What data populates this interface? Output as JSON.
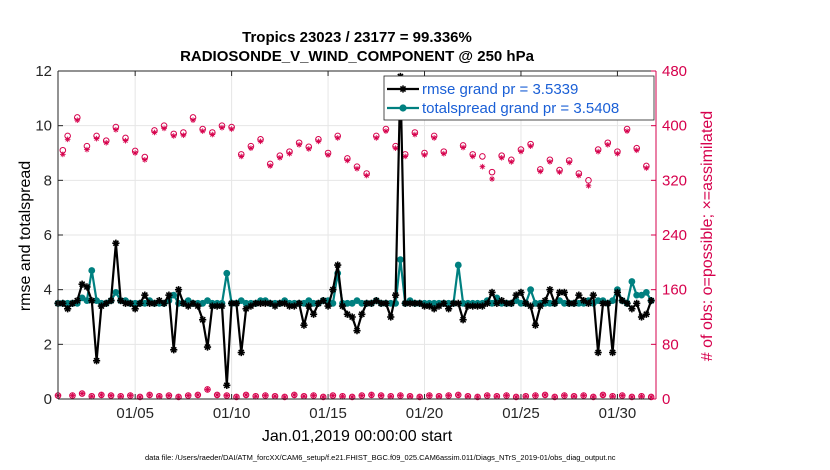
{
  "chart_data": {
    "type": "line",
    "title": "Tropics 23023 / 23177 = 99.336%",
    "subtitle": "RADIOSONDE_V_WIND_COMPONENT @ 250 hPa",
    "xlabel": "Jan.01,2019 00:00:00 start",
    "ylabel": "rmse and totalspread",
    "y2label": "# of obs: o=possible; ×=assimilated",
    "footnote": "data file: /Users/raeder/DAI/ATM_forcXX/CAM6_setup/f.e21.FHIST_BGC.f09_025.CAM6assim.011/Diags_NTrS_2019-01/obs_diag_output.nc",
    "xlim": [
      1,
      32
    ],
    "ylim": [
      0,
      12
    ],
    "y2lim": [
      0,
      480
    ],
    "x_ticks": [
      5,
      10,
      15,
      20,
      25,
      30
    ],
    "x_tick_labels": [
      "01/05",
      "01/10",
      "01/15",
      "01/20",
      "01/25",
      "01/30"
    ],
    "y_ticks": [
      0,
      2,
      4,
      6,
      8,
      10,
      12
    ],
    "y_tick_labels": [
      "0",
      "2",
      "4",
      "6",
      "8",
      "10",
      "12"
    ],
    "y2_ticks": [
      0,
      80,
      160,
      240,
      320,
      400,
      480
    ],
    "y2_tick_labels": [
      "0",
      "80",
      "160",
      "240",
      "320",
      "400",
      "480"
    ],
    "legend": {
      "position": "top-right",
      "entries": [
        "rmse grand pr = 3.5339",
        "totalspread grand pr = 3.5408"
      ]
    },
    "colors": {
      "rmse": "#000000",
      "spread": "#008080",
      "obs": "#d6004c",
      "legend_text": "#1a5fd6"
    },
    "x": [
      1.0,
      1.25,
      1.5,
      1.75,
      2.0,
      2.25,
      2.5,
      2.75,
      3.0,
      3.25,
      3.5,
      3.75,
      4.0,
      4.25,
      4.5,
      4.75,
      5.0,
      5.25,
      5.5,
      5.75,
      6.0,
      6.25,
      6.5,
      6.75,
      7.0,
      7.25,
      7.5,
      7.75,
      8.0,
      8.25,
      8.5,
      8.75,
      9.0,
      9.25,
      9.5,
      9.75,
      10.0,
      10.25,
      10.5,
      10.75,
      11.0,
      11.25,
      11.5,
      11.75,
      12.0,
      12.25,
      12.5,
      12.75,
      13.0,
      13.25,
      13.5,
      13.75,
      14.0,
      14.25,
      14.5,
      14.75,
      15.0,
      15.25,
      15.5,
      15.75,
      16.0,
      16.25,
      16.5,
      16.75,
      17.0,
      17.25,
      17.5,
      17.75,
      18.0,
      18.25,
      18.5,
      18.75,
      19.0,
      19.25,
      19.5,
      19.75,
      20.0,
      20.25,
      20.5,
      20.75,
      21.0,
      21.25,
      21.5,
      21.75,
      22.0,
      22.25,
      22.5,
      22.75,
      23.0,
      23.25,
      23.5,
      23.75,
      24.0,
      24.25,
      24.5,
      24.75,
      25.0,
      25.25,
      25.5,
      25.75,
      26.0,
      26.25,
      26.5,
      26.75,
      27.0,
      27.25,
      27.5,
      27.75,
      28.0,
      28.25,
      28.5,
      28.75,
      29.0,
      29.25,
      29.5,
      29.75,
      30.0,
      30.25,
      30.5,
      30.75,
      31.0,
      31.25,
      31.5,
      31.75
    ],
    "series": [
      {
        "name": "rmse",
        "marker": "asterisk",
        "values": [
          3.5,
          3.5,
          3.3,
          3.5,
          3.6,
          4.2,
          4.1,
          3.6,
          1.4,
          3.4,
          3.5,
          3.6,
          5.7,
          3.6,
          3.5,
          3.5,
          3.3,
          3.5,
          3.8,
          3.5,
          3.5,
          3.6,
          3.5,
          3.8,
          1.8,
          4.0,
          3.5,
          3.4,
          3.5,
          3.4,
          2.9,
          1.9,
          3.4,
          3.4,
          3.4,
          0.5,
          3.5,
          3.5,
          1.7,
          3.3,
          3.4,
          3.5,
          3.5,
          3.5,
          3.5,
          3.4,
          3.5,
          3.5,
          3.4,
          3.4,
          3.5,
          2.7,
          3.4,
          3.1,
          3.5,
          3.6,
          3.4,
          4.0,
          4.9,
          3.4,
          3.1,
          3.0,
          2.5,
          3.1,
          3.5,
          3.5,
          3.6,
          3.5,
          3.5,
          3.0,
          3.8,
          11.8,
          3.5,
          3.5,
          3.5,
          3.5,
          3.4,
          3.4,
          3.3,
          3.4,
          3.5,
          3.3,
          3.5,
          3.5,
          2.9,
          3.4,
          3.4,
          3.4,
          3.4,
          3.5,
          3.9,
          3.5,
          3.6,
          3.5,
          3.5,
          3.8,
          3.9,
          3.5,
          3.4,
          2.7,
          3.4,
          3.6,
          4.0,
          3.5,
          3.9,
          3.9,
          3.5,
          3.5,
          3.8,
          3.6,
          3.5,
          3.8,
          1.7,
          3.5,
          3.5,
          1.7,
          3.9,
          3.6,
          3.5,
          3.3,
          3.5,
          3.0,
          3.1,
          3.6
        ]
      },
      {
        "name": "totalspread",
        "marker": "dot",
        "values": [
          3.5,
          3.5,
          3.5,
          3.5,
          3.5,
          3.7,
          3.6,
          4.7,
          3.6,
          3.5,
          3.5,
          3.6,
          3.9,
          3.6,
          3.6,
          3.5,
          3.5,
          3.5,
          3.5,
          3.6,
          3.5,
          3.5,
          3.5,
          3.6,
          3.8,
          3.5,
          3.5,
          3.6,
          3.5,
          3.5,
          3.5,
          3.6,
          3.5,
          3.5,
          3.5,
          4.6,
          3.5,
          3.5,
          3.6,
          3.5,
          3.5,
          3.5,
          3.6,
          3.6,
          3.5,
          3.5,
          3.5,
          3.6,
          3.5,
          3.5,
          3.5,
          3.5,
          3.6,
          3.5,
          3.5,
          3.6,
          3.6,
          3.5,
          4.6,
          3.5,
          3.5,
          3.5,
          3.6,
          3.5,
          3.5,
          3.5,
          3.6,
          3.5,
          3.5,
          3.5,
          3.5,
          5.1,
          3.5,
          3.6,
          3.5,
          3.5,
          3.5,
          3.5,
          3.5,
          3.5,
          3.5,
          3.5,
          3.5,
          4.9,
          3.5,
          3.5,
          3.5,
          3.5,
          3.5,
          3.6,
          3.5,
          3.7,
          3.5,
          3.5,
          3.5,
          3.6,
          3.5,
          3.5,
          4.0,
          3.5,
          3.5,
          3.5,
          3.5,
          3.5,
          3.6,
          3.5,
          3.5,
          3.5,
          3.5,
          3.5,
          3.6,
          3.5,
          3.6,
          3.6,
          3.5,
          3.6,
          4.0,
          3.6,
          3.5,
          4.3,
          3.8,
          3.8,
          3.9,
          3.6
        ]
      },
      {
        "name": "obs possible",
        "axis": "right",
        "marker": "circle",
        "values": [
          5,
          364,
          385,
          5,
          412,
          8,
          370,
          4,
          385,
          6,
          378,
          5,
          398,
          4,
          382,
          5,
          363,
          3,
          354,
          6,
          393,
          4,
          400,
          5,
          388,
          3,
          390,
          5,
          412,
          6,
          395,
          14,
          390,
          6,
          400,
          5,
          398,
          3,
          358,
          6,
          370,
          4,
          380,
          5,
          344,
          4,
          356,
          3,
          362,
          6,
          375,
          4,
          369,
          5,
          380,
          3,
          360,
          5,
          385,
          4,
          352,
          3,
          340,
          5,
          330,
          6,
          385,
          5,
          395,
          4,
          370,
          5,
          358,
          4,
          390,
          3,
          360,
          5,
          385,
          4,
          362,
          5,
          419,
          6,
          371,
          4,
          358,
          3,
          355,
          5,
          332,
          4,
          356,
          5,
          350,
          3,
          365,
          4,
          373,
          5,
          336,
          6,
          350,
          3,
          335,
          5,
          349,
          4,
          330,
          5,
          320,
          3,
          365,
          6,
          375,
          4,
          362,
          5,
          395,
          3,
          367,
          4,
          341,
          3
        ]
      },
      {
        "name": "obs assimilated",
        "axis": "right",
        "marker": "asterisk",
        "values": [
          5,
          358,
          380,
          5,
          408,
          8,
          365,
          4,
          381,
          6,
          375,
          5,
          394,
          4,
          378,
          5,
          360,
          3,
          350,
          6,
          390,
          4,
          396,
          5,
          385,
          3,
          386,
          5,
          408,
          6,
          392,
          14,
          387,
          6,
          397,
          5,
          395,
          3,
          355,
          6,
          367,
          4,
          377,
          5,
          341,
          4,
          353,
          3,
          359,
          6,
          372,
          4,
          366,
          5,
          377,
          3,
          357,
          5,
          382,
          4,
          349,
          3,
          337,
          5,
          327,
          6,
          382,
          5,
          392,
          4,
          367,
          5,
          355,
          4,
          387,
          3,
          357,
          5,
          382,
          4,
          359,
          5,
          416,
          6,
          368,
          4,
          355,
          3,
          340,
          5,
          322,
          4,
          353,
          5,
          347,
          3,
          362,
          4,
          370,
          5,
          333,
          6,
          347,
          3,
          332,
          5,
          346,
          4,
          327,
          5,
          312,
          3,
          362,
          6,
          372,
          4,
          359,
          5,
          392,
          3,
          364,
          4,
          338,
          3
        ]
      }
    ]
  }
}
